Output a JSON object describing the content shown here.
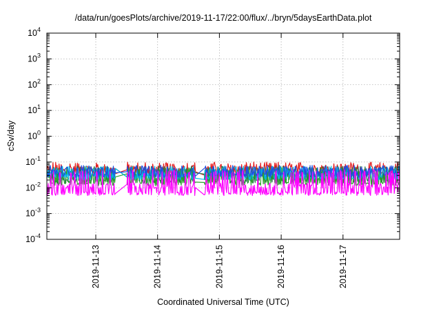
{
  "chart_data": {
    "type": "line",
    "title": "/data/run/goesPlots/archive/2019-11-17/22:00/flux/../bryn/5daysEarthData.plot",
    "xlabel": "Coordinated Universal Time (UTC)",
    "ylabel": "cSv/day",
    "y_scale": "log",
    "ylim": [
      0.0001,
      10000
    ],
    "y_ticks": [
      {
        "value": 0.0001,
        "base": "10",
        "exp": "-4"
      },
      {
        "value": 0.001,
        "base": "10",
        "exp": "-3"
      },
      {
        "value": 0.01,
        "base": "10",
        "exp": "-2"
      },
      {
        "value": 0.1,
        "base": "10",
        "exp": "-1"
      },
      {
        "value": 1,
        "base": "10",
        "exp": "0"
      },
      {
        "value": 10,
        "base": "10",
        "exp": "1"
      },
      {
        "value": 100,
        "base": "10",
        "exp": "2"
      },
      {
        "value": 1000,
        "base": "10",
        "exp": "3"
      },
      {
        "value": 10000,
        "base": "10",
        "exp": "4"
      }
    ],
    "xlim": [
      "2019-11-12T05:00",
      "2019-11-17T22:00"
    ],
    "x_ticks": [
      "2019-11-13",
      "2019-11-14",
      "2019-11-15",
      "2019-11-16",
      "2019-11-17"
    ],
    "grid": true,
    "legend": "none",
    "data_gaps": [
      [
        "2019-11-13T07:40",
        "2019-11-13T12:00"
      ],
      [
        "2019-11-14T14:50",
        "2019-11-14T18:00"
      ]
    ],
    "series": [
      {
        "color": "#e41a1c",
        "typical": 0.055,
        "low": 0.03,
        "high": 0.1
      },
      {
        "color": "#1f7a4a",
        "typical": 0.035,
        "low": 0.015,
        "high": 0.07
      },
      {
        "color": "#2ca02c",
        "typical": 0.028,
        "low": 0.012,
        "high": 0.06
      },
      {
        "color": "#00b4e6",
        "typical": 0.04,
        "low": 0.02,
        "high": 0.07
      },
      {
        "color": "#1f4fe0",
        "typical": 0.045,
        "low": 0.025,
        "high": 0.075
      },
      {
        "color": "#ff00ff",
        "typical": 0.012,
        "low": 0.005,
        "high": 0.05
      }
    ]
  }
}
